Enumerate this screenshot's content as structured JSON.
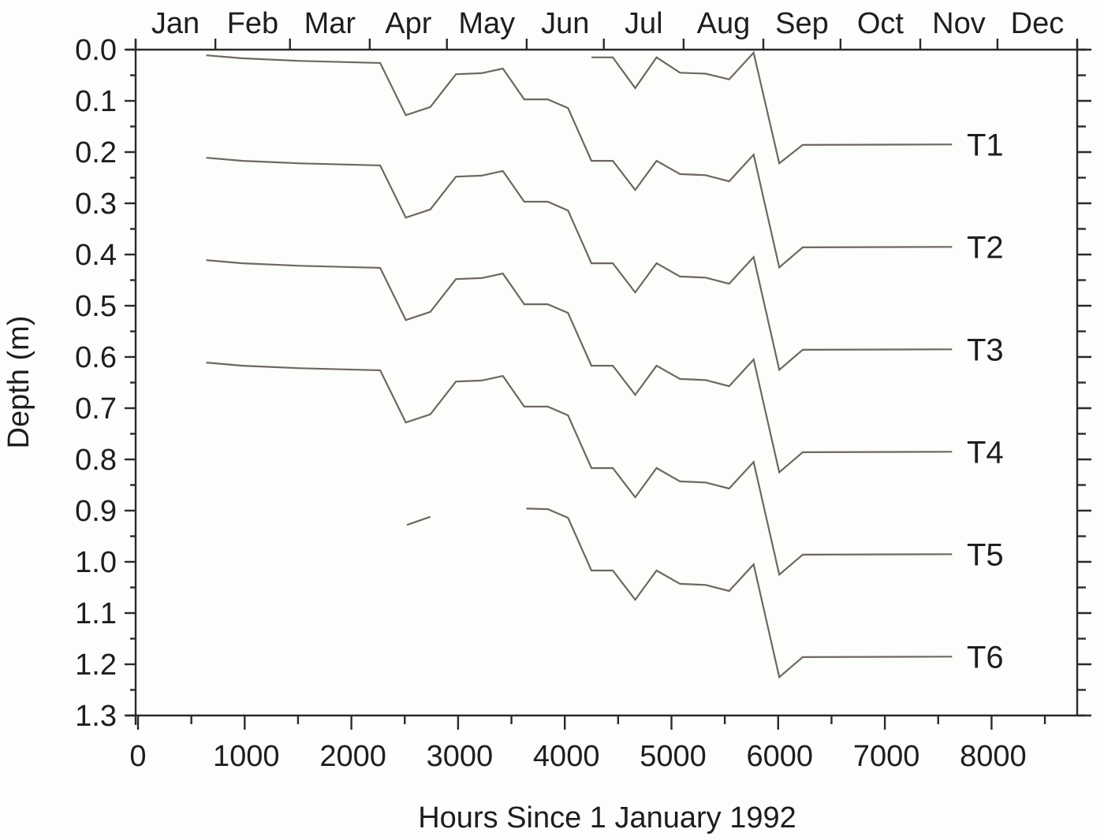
{
  "chart_data": {
    "type": "line",
    "title": "",
    "xlabel": "Hours Since 1 January 1992",
    "ylabel": "Depth (m)",
    "xlim": [
      0,
      8800
    ],
    "ylim": [
      1.3,
      0.0
    ],
    "y_inverted": true,
    "grid": false,
    "x_ticks": [
      0,
      1000,
      2000,
      3000,
      4000,
      5000,
      6000,
      7000,
      8000
    ],
    "x_tick_labels": [
      "0",
      "1000",
      "2000",
      "3000",
      "4000",
      "5000",
      "6000",
      "7000",
      "8000"
    ],
    "y_ticks": [
      0.0,
      0.1,
      0.2,
      0.3,
      0.4,
      0.5,
      0.6,
      0.7,
      0.8,
      0.9,
      1.0,
      1.1,
      1.2,
      1.3
    ],
    "y_tick_labels": [
      "0.0",
      "0.1",
      "0.2",
      "0.3",
      "0.4",
      "0.5",
      "0.6",
      "0.7",
      "0.8",
      "0.9",
      "1.0",
      "1.1",
      "1.2",
      "1.3"
    ],
    "top_axis_labels": [
      "Jan",
      "Feb",
      "Mar",
      "Apr",
      "May",
      "Jun",
      "Jul",
      "Aug",
      "Sep",
      "Oct",
      "Nov",
      "Dec"
    ],
    "top_axis_month_start_hours": [
      0,
      744,
      1440,
      2184,
      2904,
      3648,
      4368,
      5112,
      5856,
      6576,
      7320,
      8040,
      8784
    ],
    "line_color": "#6e6662",
    "series": [
      {
        "name": "T1",
        "label_depth": 0.185,
        "points": [
          [
            4250,
            0.015
          ],
          [
            4450,
            0.015
          ],
          [
            4660,
            0.075
          ],
          [
            4860,
            0.015
          ],
          [
            5080,
            0.045
          ],
          [
            5320,
            0.047
          ],
          [
            5540,
            0.058
          ],
          [
            5770,
            0.006
          ],
          [
            6010,
            0.222
          ],
          [
            6230,
            0.186
          ],
          [
            7630,
            0.185
          ]
        ]
      },
      {
        "name": "T2",
        "label_depth": 0.385,
        "points": [
          [
            640,
            0.011
          ],
          [
            980,
            0.017
          ],
          [
            1520,
            0.022
          ],
          [
            2270,
            0.026
          ],
          [
            2510,
            0.128
          ],
          [
            2740,
            0.112
          ],
          [
            2980,
            0.048
          ],
          [
            3220,
            0.046
          ],
          [
            3420,
            0.037
          ],
          [
            3620,
            0.097
          ],
          [
            3840,
            0.097
          ],
          [
            4030,
            0.114
          ],
          [
            4250,
            0.217
          ],
          [
            4450,
            0.217
          ],
          [
            4660,
            0.274
          ],
          [
            4860,
            0.217
          ],
          [
            5080,
            0.243
          ],
          [
            5320,
            0.245
          ],
          [
            5540,
            0.257
          ],
          [
            5770,
            0.205
          ],
          [
            6010,
            0.425
          ],
          [
            6230,
            0.386
          ],
          [
            7630,
            0.385
          ]
        ]
      },
      {
        "name": "T3",
        "label_depth": 0.585,
        "points": [
          [
            640,
            0.211
          ],
          [
            980,
            0.217
          ],
          [
            1520,
            0.222
          ],
          [
            2270,
            0.226
          ],
          [
            2510,
            0.328
          ],
          [
            2740,
            0.312
          ],
          [
            2980,
            0.248
          ],
          [
            3220,
            0.246
          ],
          [
            3420,
            0.237
          ],
          [
            3620,
            0.297
          ],
          [
            3840,
            0.297
          ],
          [
            4030,
            0.314
          ],
          [
            4250,
            0.417
          ],
          [
            4450,
            0.417
          ],
          [
            4660,
            0.474
          ],
          [
            4860,
            0.417
          ],
          [
            5080,
            0.443
          ],
          [
            5320,
            0.445
          ],
          [
            5540,
            0.457
          ],
          [
            5770,
            0.405
          ],
          [
            6010,
            0.625
          ],
          [
            6230,
            0.586
          ],
          [
            7630,
            0.585
          ]
        ]
      },
      {
        "name": "T4",
        "label_depth": 0.785,
        "points": [
          [
            640,
            0.411
          ],
          [
            980,
            0.417
          ],
          [
            1520,
            0.422
          ],
          [
            2270,
            0.426
          ],
          [
            2510,
            0.528
          ],
          [
            2740,
            0.512
          ],
          [
            2980,
            0.448
          ],
          [
            3220,
            0.446
          ],
          [
            3420,
            0.437
          ],
          [
            3620,
            0.497
          ],
          [
            3840,
            0.497
          ],
          [
            4030,
            0.514
          ],
          [
            4250,
            0.617
          ],
          [
            4450,
            0.617
          ],
          [
            4660,
            0.674
          ],
          [
            4860,
            0.617
          ],
          [
            5080,
            0.643
          ],
          [
            5320,
            0.645
          ],
          [
            5540,
            0.657
          ],
          [
            5770,
            0.605
          ],
          [
            6010,
            0.825
          ],
          [
            6230,
            0.786
          ],
          [
            7630,
            0.785
          ]
        ]
      },
      {
        "name": "T5",
        "label_depth": 0.985,
        "points": [
          [
            640,
            0.611
          ],
          [
            980,
            0.617
          ],
          [
            1520,
            0.622
          ],
          [
            2270,
            0.626
          ],
          [
            2510,
            0.728
          ],
          [
            2740,
            0.712
          ],
          [
            2980,
            0.648
          ],
          [
            3220,
            0.646
          ],
          [
            3420,
            0.637
          ],
          [
            3620,
            0.697
          ],
          [
            3840,
            0.697
          ],
          [
            4030,
            0.714
          ],
          [
            4250,
            0.817
          ],
          [
            4450,
            0.817
          ],
          [
            4660,
            0.874
          ],
          [
            4860,
            0.817
          ],
          [
            5080,
            0.843
          ],
          [
            5320,
            0.845
          ],
          [
            5540,
            0.857
          ],
          [
            5770,
            0.805
          ],
          [
            6010,
            1.025
          ],
          [
            6230,
            0.986
          ],
          [
            7630,
            0.985
          ]
        ]
      },
      {
        "name": "T6",
        "label_depth": 1.185,
        "segments": [
          [
            [
              2520,
              0.928
            ],
            [
              2740,
              0.912
            ]
          ],
          [
            [
              3640,
              0.896
            ],
            [
              3840,
              0.897
            ],
            [
              4030,
              0.914
            ],
            [
              4250,
              1.017
            ],
            [
              4450,
              1.017
            ],
            [
              4660,
              1.074
            ],
            [
              4860,
              1.017
            ],
            [
              5080,
              1.043
            ],
            [
              5320,
              1.045
            ],
            [
              5540,
              1.057
            ],
            [
              5770,
              1.005
            ],
            [
              6010,
              1.225
            ],
            [
              6230,
              1.186
            ],
            [
              7630,
              1.185
            ]
          ]
        ]
      }
    ]
  },
  "axes": {
    "xlabel": "Hours Since 1 January 1992",
    "ylabel": "Depth (m)"
  }
}
